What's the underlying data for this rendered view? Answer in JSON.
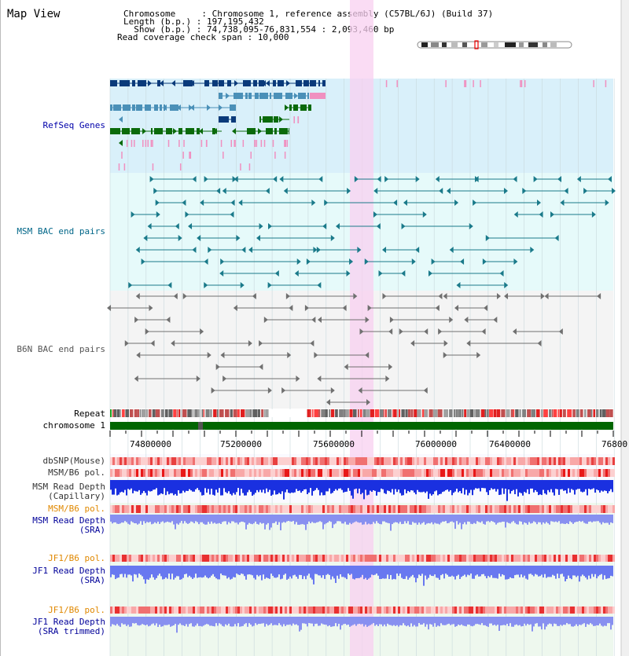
{
  "title": "Map View",
  "header": {
    "chromosome_line": "Chromosome     : Chromosome 1, reference assembly (C57BL/6J) (Build 37)",
    "length_line": "Length (b.p.) : 197,195,432",
    "show_line": "  Show (b.p.) : 74,738,095-76,831,554 : 2,093,460 bp",
    "coverage_line": "Read coverage check span : 10,000"
  },
  "tracks": {
    "refseq_label": "RefSeq Genes",
    "msm_bac_label": "MSM BAC end pairs",
    "b6n_bac_label": "B6N BAC end pairs",
    "repeat_label": "Repeat",
    "chromosome_label": "chromosome 1",
    "dbsnp_label": "dbSNP(Mouse)",
    "msm_pol_label": "MSM/B6 pol.",
    "msm_depth_cap_label_1": "MSM Read Depth",
    "msm_depth_cap_label_2": "(Capillary)",
    "msm_pol2_label": "MSM/B6 pol.",
    "msm_depth_sra_label_1": "MSM Read Depth",
    "msm_depth_sra_label_2": "(SRA)",
    "jf1_pol_label": "JF1/B6 pol.",
    "jf1_depth_sra_label_1": "JF1 Read Depth",
    "jf1_depth_sra_label_2": "(SRA)",
    "jf1_pol2_label": "JF1/B6 pol.",
    "jf1_depth_trim_label_1": "JF1 Read Depth",
    "jf1_depth_trim_label_2": "(SRA trimmed)"
  },
  "axis": {
    "ticks": [
      "74800000",
      "75200000",
      "75600000",
      "76000000",
      "76400000",
      "76800"
    ]
  },
  "colors": {
    "refseq_bg": "#d9f0fa",
    "msm_bg": "#e6fafa",
    "b6n_bg": "#f4f4f4",
    "highlight": "#f8d0f0",
    "refseq_text": "#0000aa",
    "msm_text": "#006688",
    "b6n_text": "#555555",
    "orange": "#e08800",
    "navy": "#000099",
    "gene_dark": "#0a3a7a",
    "gene_mid": "#4a90b8",
    "gene_green": "#0a6a0a",
    "gene_pink": "#f090c0",
    "chrom_green": "#006600"
  }
}
